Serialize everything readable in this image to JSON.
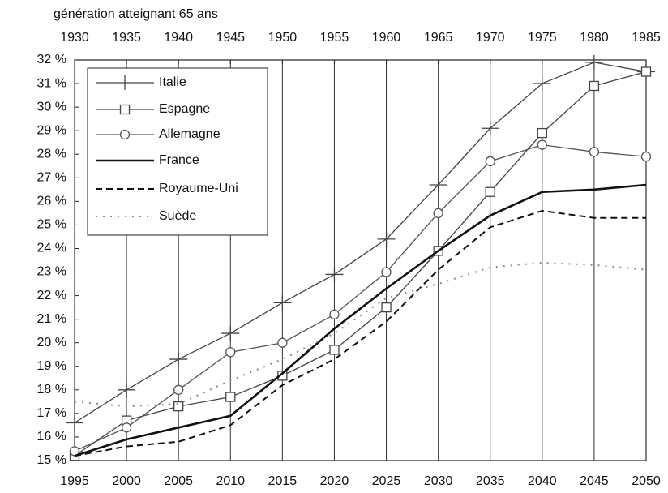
{
  "chart_data": {
    "type": "line",
    "x2label": "génération atteignant 65 ans",
    "x": [
      1995,
      2000,
      2005,
      2010,
      2015,
      2020,
      2025,
      2030,
      2035,
      2040,
      2045,
      2050
    ],
    "xlim": [
      1995,
      2050
    ],
    "xticks": [
      1995,
      2000,
      2005,
      2010,
      2015,
      2020,
      2025,
      2030,
      2035,
      2040,
      2045,
      2050
    ],
    "x2lim": [
      1930,
      1985
    ],
    "x2ticks": [
      1930,
      1935,
      1940,
      1945,
      1950,
      1955,
      1960,
      1965,
      1970,
      1975,
      1980,
      1985
    ],
    "ylim": [
      15,
      32
    ],
    "yticks": [
      {
        "value": 15,
        "label": "15 %"
      },
      {
        "value": 16,
        "label": "16 %"
      },
      {
        "value": 17,
        "label": "17 %"
      },
      {
        "value": 18,
        "label": "18 %"
      },
      {
        "value": 19,
        "label": "19 %"
      },
      {
        "value": 20,
        "label": "20 %"
      },
      {
        "value": 21,
        "label": "21 %"
      },
      {
        "value": 22,
        "label": "22 %"
      },
      {
        "value": 23,
        "label": "23 %"
      },
      {
        "value": 24,
        "label": "24 %"
      },
      {
        "value": 25,
        "label": "25 %"
      },
      {
        "value": 26,
        "label": "26 %"
      },
      {
        "value": 27,
        "label": "27 %"
      },
      {
        "value": 28,
        "label": "28 %"
      },
      {
        "value": 29,
        "label": "29 %"
      },
      {
        "value": 30,
        "label": "30 %"
      },
      {
        "value": 31,
        "label": "31 %"
      },
      {
        "value": 32,
        "label": "32 %"
      }
    ],
    "grid": "x",
    "legend": "upper left",
    "series": [
      {
        "name": "Italie",
        "color": "#444444",
        "width": 1.3,
        "dash": "none",
        "marker": "plus",
        "values": [
          16.6,
          18.0,
          19.3,
          20.4,
          21.7,
          22.9,
          24.4,
          26.7,
          29.1,
          31.0,
          31.9,
          31.5
        ]
      },
      {
        "name": "Espagne",
        "color": "#444444",
        "width": 1.3,
        "dash": "none",
        "marker": "square",
        "values": [
          15.2,
          16.7,
          17.3,
          17.7,
          18.6,
          19.7,
          21.5,
          23.9,
          26.4,
          28.9,
          30.9,
          31.5
        ]
      },
      {
        "name": "Allemagne",
        "color": "#555555",
        "width": 1.3,
        "dash": "none",
        "marker": "circle",
        "values": [
          15.4,
          16.4,
          18.0,
          19.6,
          20.0,
          21.2,
          23.0,
          25.5,
          27.7,
          28.4,
          28.1,
          27.9
        ]
      },
      {
        "name": "France",
        "color": "#111111",
        "width": 2.6,
        "dash": "none",
        "marker": "none",
        "values": [
          15.2,
          15.9,
          16.4,
          16.9,
          18.7,
          20.6,
          22.3,
          23.9,
          25.4,
          26.4,
          26.5,
          26.7
        ]
      },
      {
        "name": "Royaume-Uni",
        "color": "#111111",
        "width": 2,
        "dash": "8 5",
        "marker": "none",
        "values": [
          15.2,
          15.6,
          15.8,
          16.5,
          18.2,
          19.3,
          20.9,
          23.1,
          24.9,
          25.6,
          25.3,
          25.3
        ]
      },
      {
        "name": "Suède",
        "color": "#888888",
        "width": 2,
        "dash": "2 7",
        "marker": "none",
        "values": [
          17.5,
          17.3,
          17.4,
          18.4,
          19.3,
          20.4,
          21.9,
          22.5,
          23.2,
          23.4,
          23.3,
          23.1
        ]
      }
    ]
  }
}
